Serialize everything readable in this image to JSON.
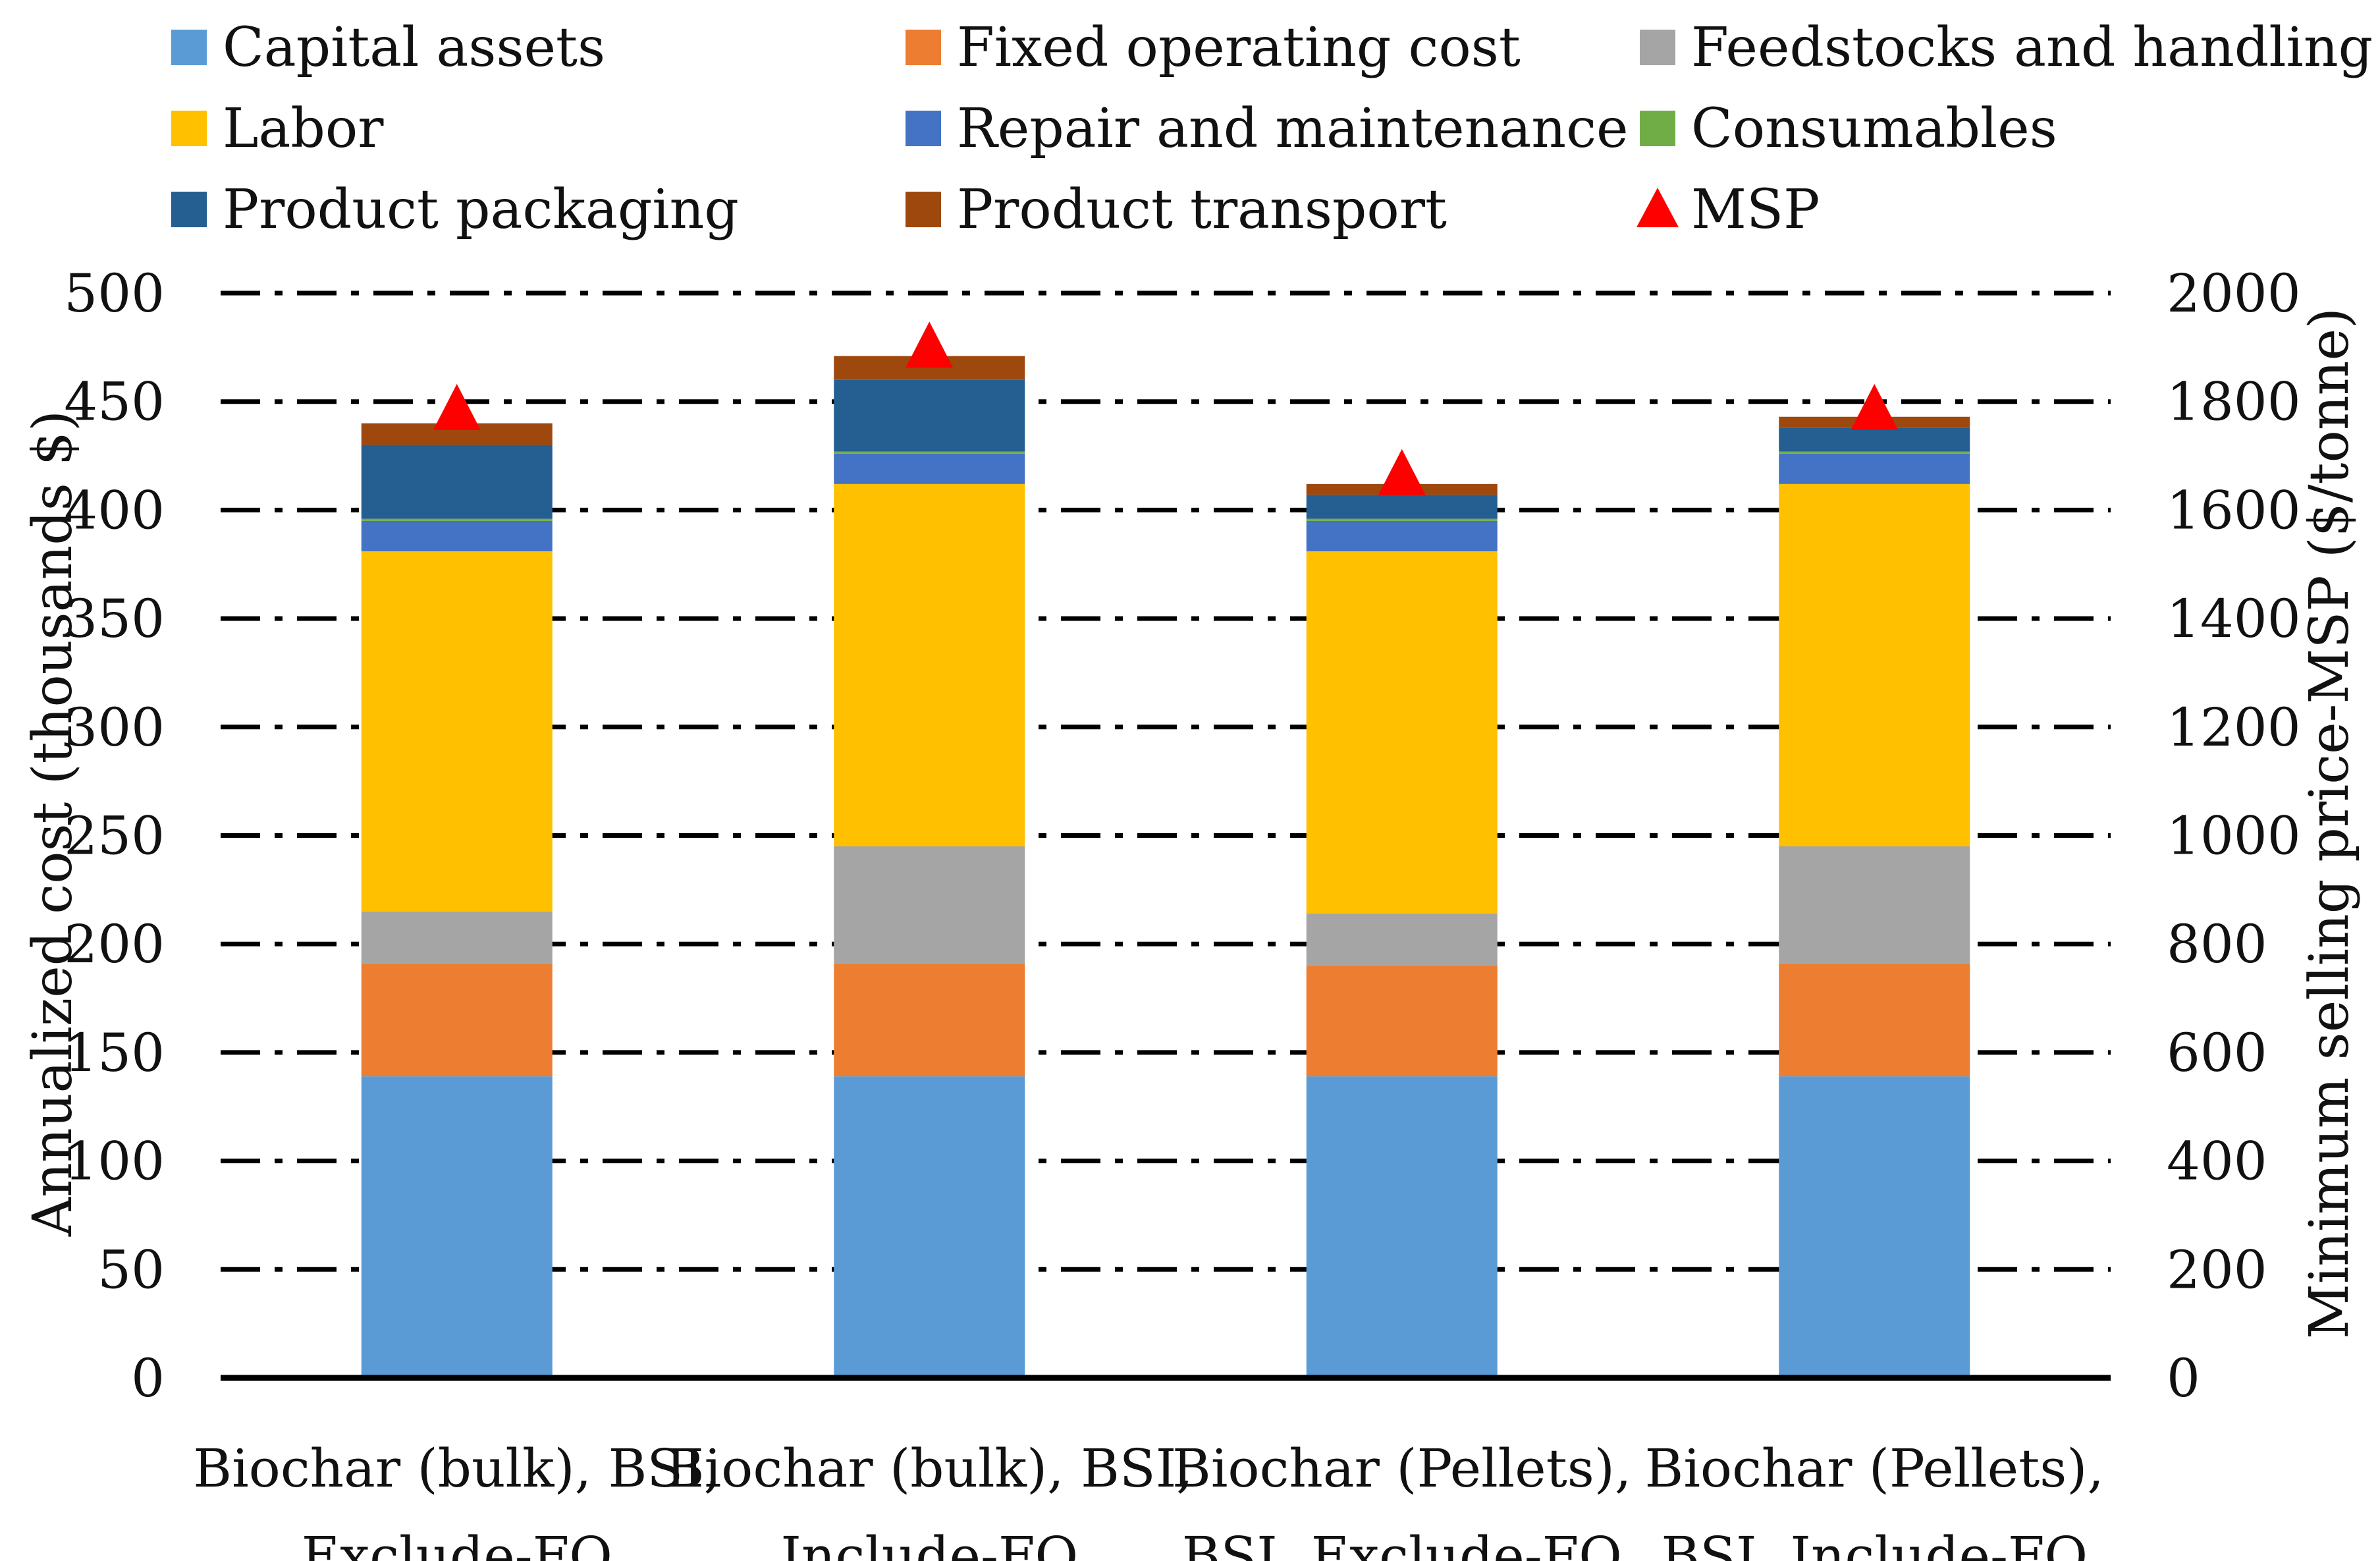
{
  "chart_data": {
    "type": "bar",
    "stacked": true,
    "title": "",
    "categories": [
      [
        "Biochar (bulk), BSI,",
        "Exclude-FO"
      ],
      [
        "Biochar (bulk), BSI,",
        "Include-FO"
      ],
      [
        "Biochar (Pellets),",
        "BSI, Exclude-FO"
      ],
      [
        "Biochar (Pellets),",
        "BSI, Include-FO"
      ]
    ],
    "series": [
      {
        "name": "Capital assets",
        "color": "#5B9BD5",
        "values": [
          139,
          139,
          139,
          139
        ]
      },
      {
        "name": "Fixed operating cost",
        "color": "#ED7D31",
        "values": [
          52,
          52,
          51,
          52
        ]
      },
      {
        "name": "Feedstocks and handling",
        "color": "#A5A5A5",
        "values": [
          24,
          54,
          24,
          54
        ]
      },
      {
        "name": "Labor",
        "color": "#FFC000",
        "values": [
          166,
          167,
          167,
          167
        ]
      },
      {
        "name": "Repair and maintenance",
        "color": "#4472C4",
        "values": [
          14,
          14,
          14,
          14
        ]
      },
      {
        "name": "Consumables",
        "color": "#70AD47",
        "values": [
          1,
          1,
          1,
          1
        ]
      },
      {
        "name": "Product packaging",
        "color": "#255E91",
        "values": [
          34,
          33,
          11,
          11
        ]
      },
      {
        "name": "Product transport",
        "color": "#9E480E",
        "values": [
          10,
          11,
          5,
          5
        ]
      }
    ],
    "msp": {
      "name": "MSP",
      "color": "#FF0000",
      "values": [
        1790,
        1905,
        1670,
        1790
      ]
    },
    "ylabel": "Annualized cost  (thousands $)",
    "y2label": "Minimum selling price-MSP ($/tonne)",
    "xlabel": "",
    "ylim": [
      0,
      500
    ],
    "y2lim": [
      0,
      2000
    ],
    "yticks": [
      "0",
      "50",
      "100",
      "150",
      "200",
      "250",
      "300",
      "350",
      "400",
      "450",
      "500"
    ],
    "y2ticks": [
      "0",
      "200",
      "400",
      "600",
      "800",
      "1000",
      "1200",
      "1400",
      "1600",
      "1800",
      "2000"
    ],
    "grid": true,
    "legend_position": "top"
  }
}
